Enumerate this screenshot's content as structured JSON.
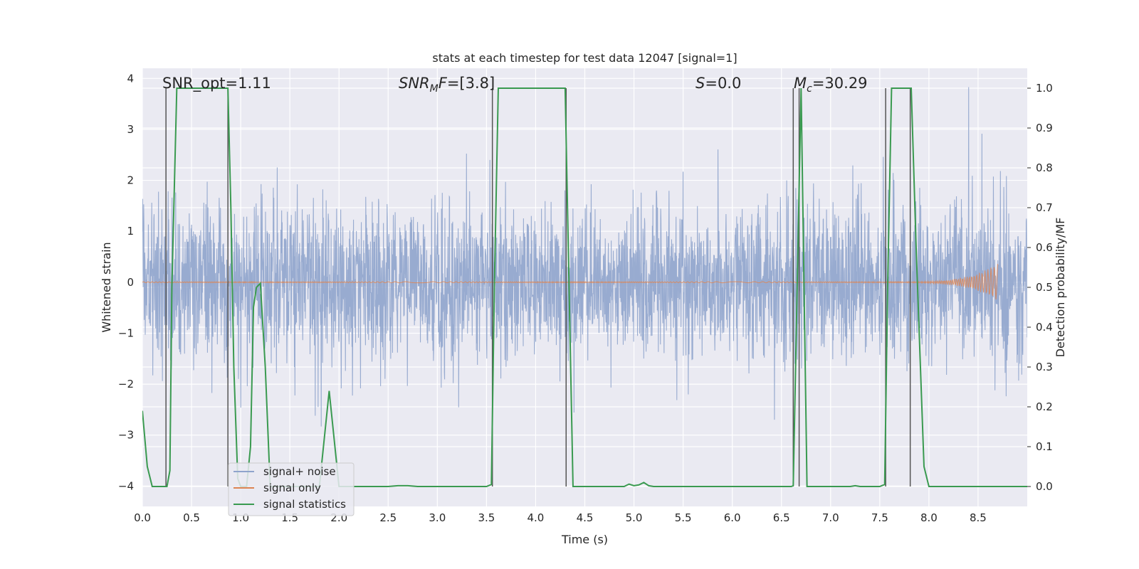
{
  "chart_data": {
    "type": "line",
    "title": "stats at each timestep for test data 12047 [signal=1]",
    "xlabel": "Time (s)",
    "ylabel_left": "Whitened strain",
    "ylabel_right": "Detection probability/MF",
    "xlim": [
      0.0,
      9.0
    ],
    "ylim_left": [
      -4.4,
      4.2
    ],
    "ylim_right": [
      -0.05,
      1.05
    ],
    "x_ticks": [
      "0.0",
      "0.5",
      "1.0",
      "1.5",
      "2.0",
      "2.5",
      "3.0",
      "3.5",
      "4.0",
      "4.5",
      "5.0",
      "5.5",
      "6.0",
      "6.5",
      "7.0",
      "7.5",
      "8.0",
      "8.5"
    ],
    "y_ticks_left": [
      "4",
      "3",
      "2",
      "1",
      "0",
      "−1",
      "−2",
      "−3",
      "−4"
    ],
    "y_ticks_right": [
      "1.0",
      "0.9",
      "0.8",
      "0.7",
      "0.6",
      "0.5",
      "0.4",
      "0.3",
      "0.2",
      "0.1",
      "0.0"
    ],
    "grid": true,
    "legend_position": "lower-left",
    "annotations": [
      {
        "id": "snr-opt",
        "prefix": "SNR_opt=",
        "value": "1.11"
      },
      {
        "id": "snr-mf",
        "prefix": "SNR",
        "sub": "M",
        "suffix": "F=",
        "value": "[3.8]"
      },
      {
        "id": "s",
        "prefix": "S",
        "value": "=0.0"
      },
      {
        "id": "mc",
        "prefix": "M",
        "sub": "c",
        "value": "=30.29"
      }
    ],
    "series": [
      {
        "name": "signal+ noise",
        "color": "#8fa4cc",
        "style": "noise band, amplitude ~±2.7 with spikes to ±4"
      },
      {
        "name": "signal only",
        "color": "#dd8452",
        "style": "near zero, chirp at t≈8.5–8.7"
      },
      {
        "name": "signal statistics",
        "color": "#3a9a50",
        "axis": "right",
        "x": [
          0.0,
          0.05,
          0.1,
          0.15,
          0.2,
          0.25,
          0.28,
          0.3,
          0.35,
          0.4,
          0.5,
          0.6,
          0.7,
          0.8,
          0.87,
          0.9,
          0.93,
          0.97,
          1.0,
          1.03,
          1.06,
          1.1,
          1.13,
          1.16,
          1.2,
          1.25,
          1.3,
          1.4,
          1.5,
          1.6,
          1.7,
          1.8,
          1.85,
          1.9,
          1.95,
          2.0,
          2.1,
          2.2,
          2.3,
          2.4,
          2.5,
          2.6,
          2.7,
          2.8,
          2.9,
          3.0,
          3.1,
          3.2,
          3.3,
          3.4,
          3.5,
          3.55,
          3.58,
          3.62,
          3.7,
          3.8,
          3.9,
          4.0,
          4.1,
          4.2,
          4.3,
          4.34,
          4.38,
          4.42,
          4.5,
          4.6,
          4.7,
          4.8,
          4.9,
          4.95,
          5.0,
          5.05,
          5.1,
          5.15,
          5.2,
          5.3,
          5.4,
          5.5,
          5.6,
          5.7,
          5.8,
          5.9,
          6.0,
          6.1,
          6.2,
          6.3,
          6.4,
          6.5,
          6.6,
          6.62,
          6.66,
          6.7,
          6.73,
          6.76,
          6.8,
          6.9,
          7.0,
          7.1,
          7.2,
          7.25,
          7.3,
          7.4,
          7.5,
          7.55,
          7.58,
          7.62,
          7.7,
          7.8,
          7.82,
          7.87,
          7.95,
          8.0,
          8.1,
          8.2,
          8.3,
          8.4,
          8.5,
          8.6,
          8.7,
          8.8,
          8.9,
          9.0
        ],
        "y": [
          0.19,
          0.05,
          0.0,
          0.0,
          0.0,
          0.0,
          0.04,
          0.5,
          1.0,
          1.0,
          1.0,
          1.0,
          1.0,
          1.0,
          1.0,
          0.7,
          0.3,
          0.02,
          0.0,
          0.0,
          0.0,
          0.1,
          0.45,
          0.5,
          0.51,
          0.3,
          0.0,
          0.0,
          0.0,
          0.0,
          0.0,
          0.0,
          0.12,
          0.24,
          0.12,
          0.0,
          0.0,
          0.0,
          0.0,
          0.0,
          0.0,
          0.002,
          0.002,
          0.0,
          0.0,
          0.0,
          0.0,
          0.0,
          0.0,
          0.0,
          0.0,
          0.005,
          0.5,
          1.0,
          1.0,
          1.0,
          1.0,
          1.0,
          1.0,
          1.0,
          1.0,
          0.5,
          0.0,
          0.0,
          0.0,
          0.0,
          0.0,
          0.0,
          0.0,
          0.006,
          0.002,
          0.004,
          0.01,
          0.002,
          0.0,
          0.0,
          0.0,
          0.0,
          0.0,
          0.0,
          0.0,
          0.0,
          0.0,
          0.0,
          0.0,
          0.0,
          0.0,
          0.0,
          0.0,
          0.002,
          0.5,
          1.0,
          0.5,
          0.0,
          0.0,
          0.0,
          0.0,
          0.0,
          0.0,
          0.002,
          0.0,
          0.0,
          0.0,
          0.005,
          0.5,
          1.0,
          1.0,
          1.0,
          1.0,
          0.6,
          0.05,
          0.0,
          0.0,
          0.0,
          0.0,
          0.0,
          0.0,
          0.0,
          0.0,
          0.0,
          0.0,
          0.0
        ]
      }
    ],
    "vertical_markers_x": [
      0.24,
      0.87,
      3.56,
      4.31,
      6.62,
      6.68,
      7.56,
      7.81
    ]
  }
}
